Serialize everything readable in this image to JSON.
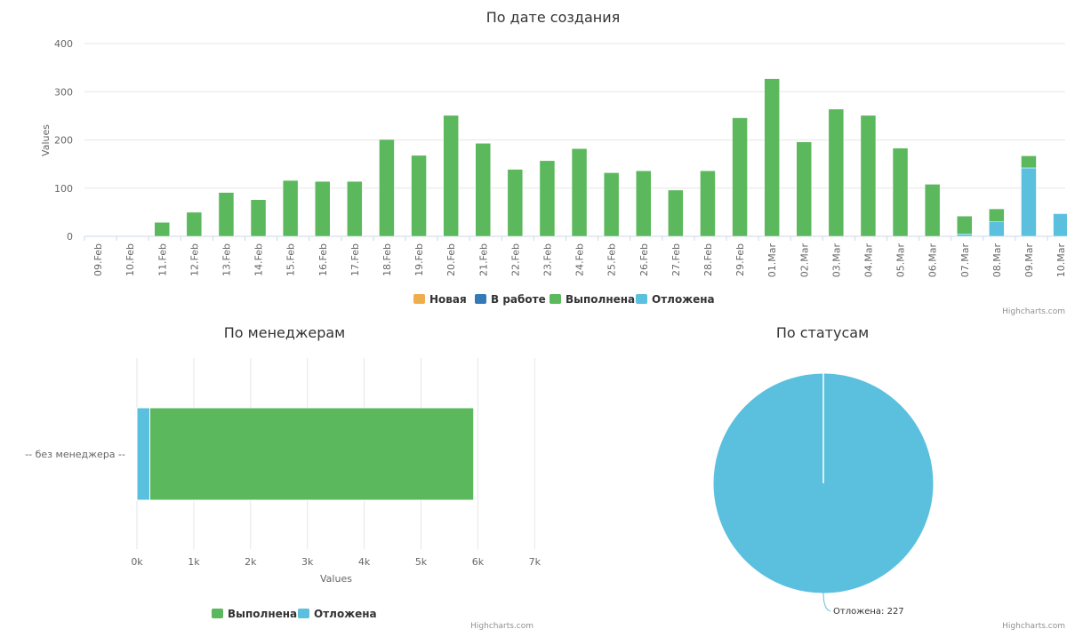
{
  "colors": {
    "new": "#f0ad4e",
    "in_progress": "#337ab7",
    "done": "#5cb85c",
    "postponed": "#5bc0de"
  },
  "legend": {
    "new": "Новая",
    "in_progress": "В работе",
    "done": "Выполнена",
    "postponed": "Отложена"
  },
  "credits": "Highcharts.com",
  "chart_data": [
    {
      "type": "bar",
      "title": "По дате создания",
      "ylabel": "Values",
      "xlabel": "",
      "ylim": [
        0,
        400
      ],
      "yticks": [
        0,
        100,
        200,
        300,
        400
      ],
      "categories": [
        "09.Feb",
        "10.Feb",
        "11.Feb",
        "12.Feb",
        "13.Feb",
        "14.Feb",
        "15.Feb",
        "16.Feb",
        "17.Feb",
        "18.Feb",
        "19.Feb",
        "20.Feb",
        "21.Feb",
        "22.Feb",
        "23.Feb",
        "24.Feb",
        "25.Feb",
        "26.Feb",
        "27.Feb",
        "28.Feb",
        "29.Feb",
        "01.Mar",
        "02.Mar",
        "03.Mar",
        "04.Mar",
        "05.Mar",
        "06.Mar",
        "07.Mar",
        "08.Mar",
        "09.Mar",
        "10.Mar"
      ],
      "series": [
        {
          "name": "Новая",
          "values": [
            0,
            0,
            0,
            0,
            0,
            0,
            0,
            0,
            0,
            0,
            0,
            0,
            0,
            0,
            0,
            0,
            0,
            0,
            0,
            0,
            0,
            0,
            0,
            0,
            0,
            0,
            0,
            0,
            0,
            0,
            0
          ]
        },
        {
          "name": "В работе",
          "values": [
            0,
            0,
            0,
            0,
            0,
            0,
            0,
            0,
            0,
            0,
            0,
            0,
            0,
            0,
            0,
            0,
            0,
            0,
            0,
            0,
            0,
            0,
            0,
            0,
            0,
            0,
            0,
            0,
            0,
            0,
            0
          ]
        },
        {
          "name": "Выполнена",
          "values": [
            0,
            0,
            29,
            50,
            91,
            76,
            116,
            114,
            114,
            201,
            168,
            251,
            193,
            139,
            157,
            182,
            132,
            136,
            96,
            136,
            246,
            327,
            196,
            264,
            251,
            183,
            108,
            37,
            27,
            25,
            0
          ]
        },
        {
          "name": "Отложена",
          "values": [
            0,
            0,
            0,
            0,
            0,
            0,
            0,
            0,
            0,
            0,
            0,
            0,
            0,
            0,
            0,
            0,
            0,
            0,
            0,
            0,
            0,
            0,
            0,
            0,
            0,
            0,
            0,
            5,
            30,
            142,
            47
          ]
        }
      ],
      "stacked": true
    },
    {
      "type": "bar",
      "orientation": "horizontal",
      "title": "По менеджерам",
      "xlabel": "Values",
      "categories": [
        "-- без менеджера --"
      ],
      "xlim": [
        0,
        7000
      ],
      "xticks": [
        "0k",
        "1k",
        "2k",
        "3k",
        "4k",
        "5k",
        "6k",
        "7k"
      ],
      "series": [
        {
          "name": "Выполнена",
          "values": [
            5700
          ]
        },
        {
          "name": "Отложена",
          "values": [
            227
          ]
        }
      ],
      "stacked": true
    },
    {
      "type": "pie",
      "title": "По статусам",
      "slices": [
        {
          "name": "Отложена",
          "value": 227,
          "label": "Отложена: 227"
        },
        {
          "name": "Выполнена",
          "value": 0.0001
        }
      ]
    }
  ]
}
